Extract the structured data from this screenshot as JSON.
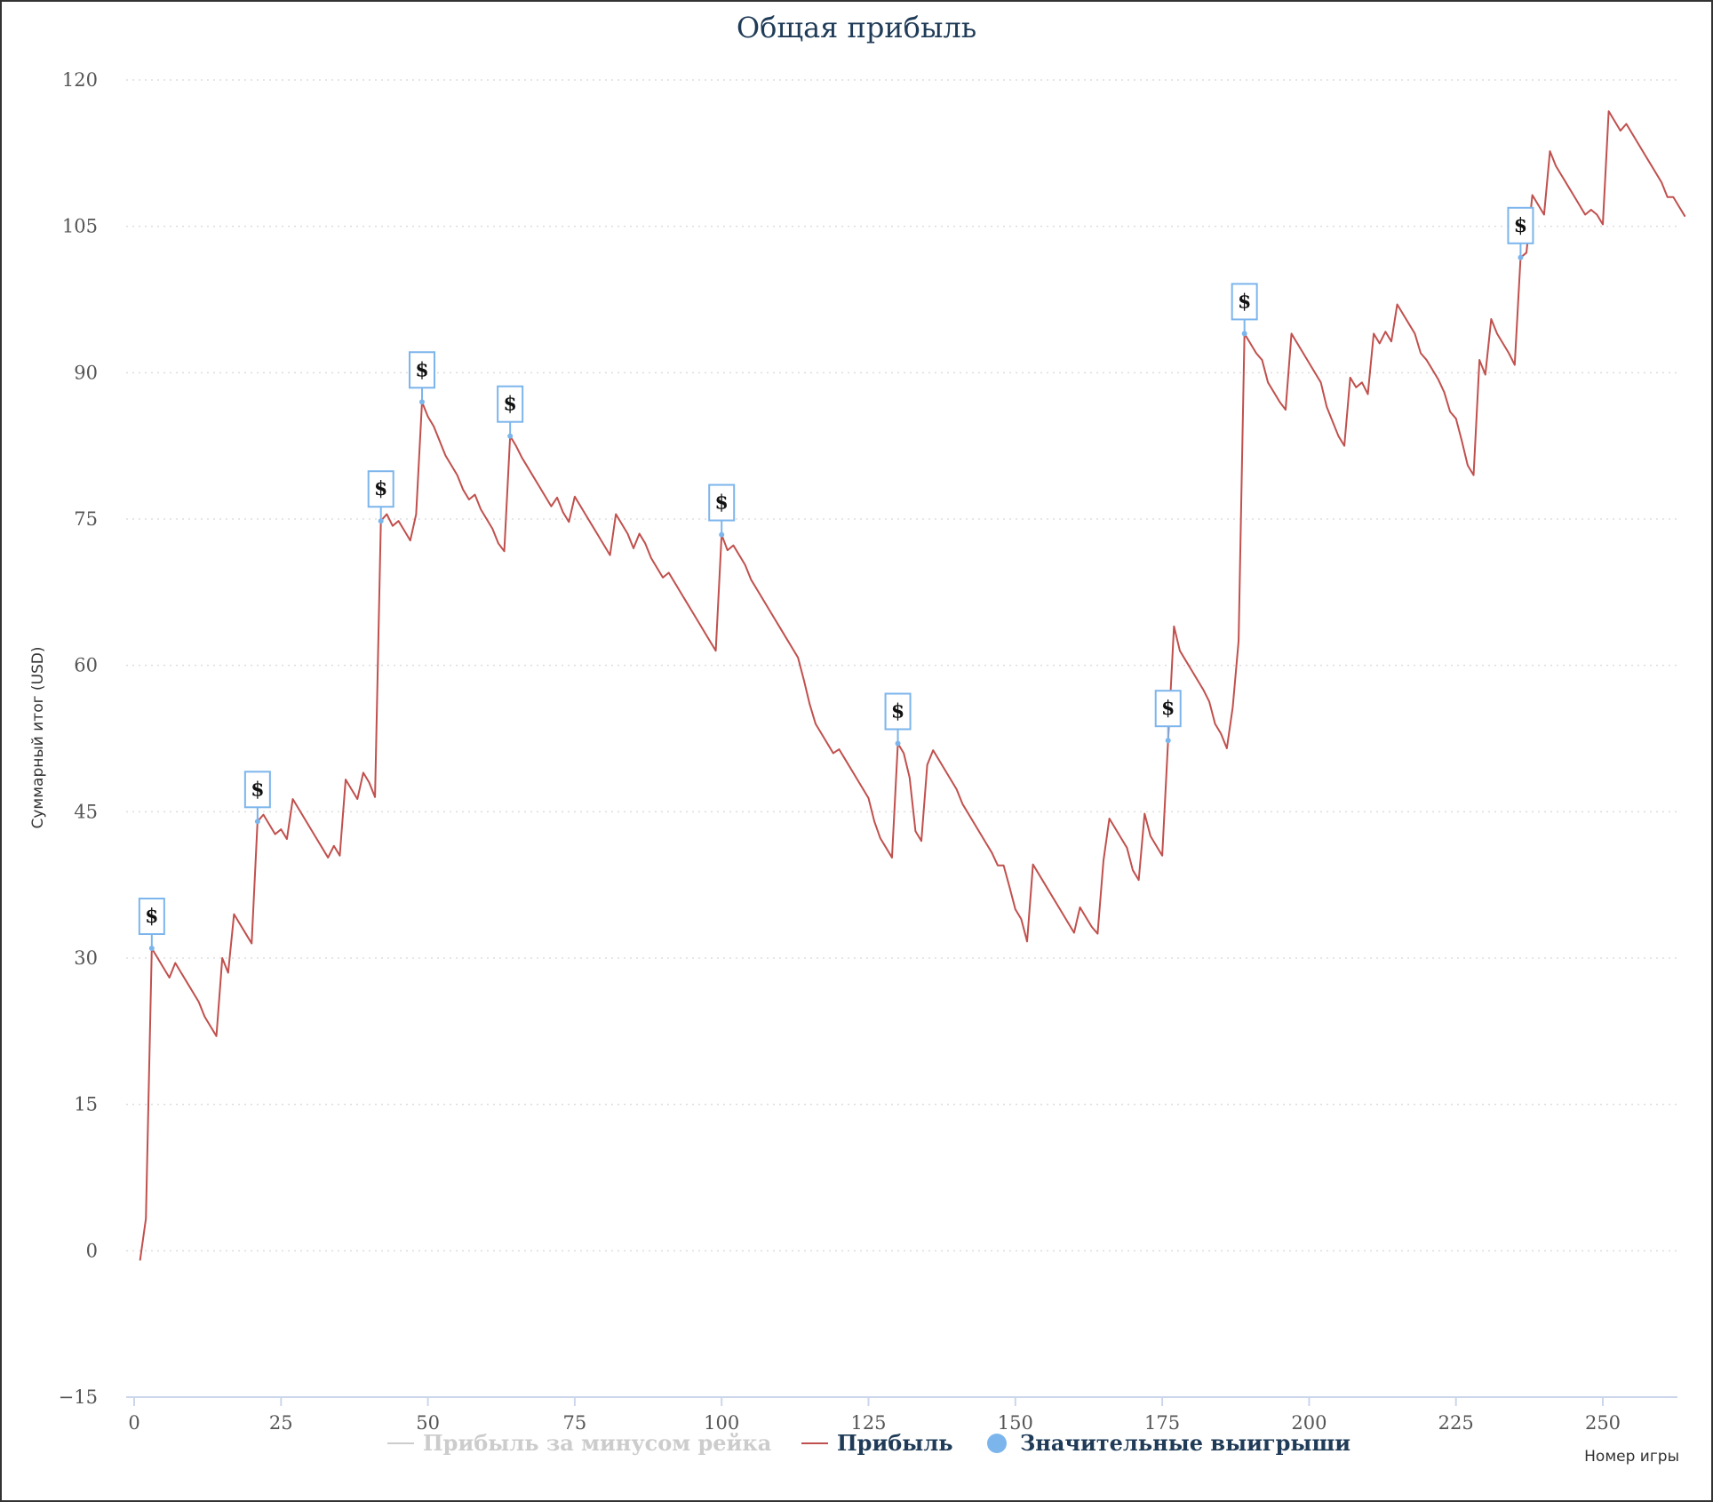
{
  "chart_data": {
    "type": "line",
    "title": "Общая прибыль",
    "xlabel": "Номер игры",
    "ylabel": "Суммарный итог (USD)",
    "xlim": [
      0,
      265
    ],
    "ylim": [
      -15,
      120
    ],
    "x_ticks": [
      0,
      25,
      50,
      75,
      100,
      125,
      150,
      175,
      200,
      225,
      250
    ],
    "y_ticks": [
      -15,
      0,
      15,
      30,
      45,
      60,
      75,
      90,
      105,
      120
    ],
    "grid": "horizontal-dotted",
    "legend": {
      "position": "bottom-center",
      "items": [
        {
          "label": "Прибыль за минусом рейка",
          "color": "#cccccc",
          "marker": "line",
          "hidden": true
        },
        {
          "label": "Прибыль",
          "color": "#c0504d",
          "marker": "line",
          "hidden": false
        },
        {
          "label": "Значительные выигрыши",
          "color": "#7cb5ec",
          "marker": "circle",
          "hidden": false
        }
      ]
    },
    "series": [
      {
        "name": "Прибыль",
        "color": "#c0504d",
        "points": [
          [
            1,
            -1
          ],
          [
            2,
            3.3
          ],
          [
            3,
            31
          ],
          [
            4,
            30
          ],
          [
            5,
            29
          ],
          [
            6,
            28
          ],
          [
            7,
            29.5
          ],
          [
            8,
            28.5
          ],
          [
            9,
            27.5
          ],
          [
            10,
            26.5
          ],
          [
            11,
            25.5
          ],
          [
            12,
            24
          ],
          [
            13,
            23
          ],
          [
            14,
            22
          ],
          [
            15,
            30
          ],
          [
            16,
            28.5
          ],
          [
            17,
            34.5
          ],
          [
            18,
            33.5
          ],
          [
            19,
            32.5
          ],
          [
            20,
            31.5
          ],
          [
            21,
            44
          ],
          [
            22,
            44.7
          ],
          [
            23,
            43.7
          ],
          [
            24,
            42.7
          ],
          [
            25,
            43.2
          ],
          [
            26,
            42.2
          ],
          [
            27,
            46.3
          ],
          [
            28,
            45.3
          ],
          [
            29,
            44.3
          ],
          [
            30,
            43.3
          ],
          [
            31,
            42.3
          ],
          [
            32,
            41.3
          ],
          [
            33,
            40.3
          ],
          [
            34,
            41.5
          ],
          [
            35,
            40.5
          ],
          [
            36,
            48.3
          ],
          [
            37,
            47.3
          ],
          [
            38,
            46.3
          ],
          [
            39,
            49
          ],
          [
            40,
            48
          ],
          [
            41,
            46.5
          ],
          [
            42,
            74.8
          ],
          [
            43,
            75.5
          ],
          [
            44,
            74.3
          ],
          [
            45,
            74.8
          ],
          [
            46,
            73.8
          ],
          [
            47,
            72.8
          ],
          [
            48,
            75.5
          ],
          [
            49,
            87
          ],
          [
            50,
            85.5
          ],
          [
            51,
            84.5
          ],
          [
            52,
            83
          ],
          [
            53,
            81.5
          ],
          [
            54,
            80.5
          ],
          [
            55,
            79.5
          ],
          [
            56,
            78
          ],
          [
            57,
            77
          ],
          [
            58,
            77.5
          ],
          [
            59,
            76
          ],
          [
            60,
            75
          ],
          [
            61,
            74
          ],
          [
            62,
            72.5
          ],
          [
            63,
            71.7
          ],
          [
            64,
            83.5
          ],
          [
            65,
            82.5
          ],
          [
            66,
            81.3
          ],
          [
            67,
            80.3
          ],
          [
            68,
            79.3
          ],
          [
            69,
            78.3
          ],
          [
            70,
            77.3
          ],
          [
            71,
            76.3
          ],
          [
            72,
            77.2
          ],
          [
            73,
            75.7
          ],
          [
            74,
            74.7
          ],
          [
            75,
            77.3
          ],
          [
            76,
            76.3
          ],
          [
            77,
            75.3
          ],
          [
            78,
            74.3
          ],
          [
            79,
            73.3
          ],
          [
            80,
            72.3
          ],
          [
            81,
            71.3
          ],
          [
            82,
            75.5
          ],
          [
            83,
            74.5
          ],
          [
            84,
            73.5
          ],
          [
            85,
            72
          ],
          [
            86,
            73.5
          ],
          [
            87,
            72.5
          ],
          [
            88,
            71
          ],
          [
            89,
            70
          ],
          [
            90,
            69
          ],
          [
            91,
            69.5
          ],
          [
            92,
            68.5
          ],
          [
            93,
            67.5
          ],
          [
            94,
            66.5
          ],
          [
            95,
            65.5
          ],
          [
            96,
            64.5
          ],
          [
            97,
            63.5
          ],
          [
            98,
            62.5
          ],
          [
            99,
            61.5
          ],
          [
            100,
            73.4
          ],
          [
            101,
            71.8
          ],
          [
            102,
            72.3
          ],
          [
            103,
            71.3
          ],
          [
            104,
            70.3
          ],
          [
            105,
            68.8
          ],
          [
            106,
            67.8
          ],
          [
            107,
            66.8
          ],
          [
            108,
            65.8
          ],
          [
            109,
            64.8
          ],
          [
            110,
            63.8
          ],
          [
            111,
            62.8
          ],
          [
            112,
            61.8
          ],
          [
            113,
            60.8
          ],
          [
            114,
            58.5
          ],
          [
            115,
            56
          ],
          [
            116,
            54
          ],
          [
            117,
            53
          ],
          [
            118,
            52
          ],
          [
            119,
            51
          ],
          [
            120,
            51.4
          ],
          [
            121,
            50.4
          ],
          [
            122,
            49.4
          ],
          [
            123,
            48.4
          ],
          [
            124,
            47.4
          ],
          [
            125,
            46.4
          ],
          [
            126,
            44
          ],
          [
            127,
            42.3
          ],
          [
            128,
            41.3
          ],
          [
            129,
            40.3
          ],
          [
            130,
            52
          ],
          [
            131,
            51
          ],
          [
            132,
            48.5
          ],
          [
            133,
            43
          ],
          [
            134,
            42
          ],
          [
            135,
            49.8
          ],
          [
            136,
            51.3
          ],
          [
            137,
            50.3
          ],
          [
            138,
            49.3
          ],
          [
            139,
            48.3
          ],
          [
            140,
            47.3
          ],
          [
            141,
            45.8
          ],
          [
            142,
            44.8
          ],
          [
            143,
            43.8
          ],
          [
            144,
            42.8
          ],
          [
            145,
            41.8
          ],
          [
            146,
            40.8
          ],
          [
            147,
            39.5
          ],
          [
            148,
            39.5
          ],
          [
            149,
            37.3
          ],
          [
            150,
            35
          ],
          [
            151,
            34
          ],
          [
            152,
            31.7
          ],
          [
            153,
            39.6
          ],
          [
            154,
            38.6
          ],
          [
            155,
            37.6
          ],
          [
            156,
            36.6
          ],
          [
            157,
            35.6
          ],
          [
            158,
            34.6
          ],
          [
            159,
            33.6
          ],
          [
            160,
            32.6
          ],
          [
            161,
            35.2
          ],
          [
            162,
            34.2
          ],
          [
            163,
            33.2
          ],
          [
            164,
            32.5
          ],
          [
            165,
            40
          ],
          [
            166,
            44.3
          ],
          [
            167,
            43.3
          ],
          [
            168,
            42.3
          ],
          [
            169,
            41.3
          ],
          [
            170,
            39
          ],
          [
            171,
            38
          ],
          [
            172,
            44.8
          ],
          [
            173,
            42.5
          ],
          [
            174,
            41.5
          ],
          [
            175,
            40.5
          ],
          [
            176,
            52.3
          ],
          [
            177,
            64
          ],
          [
            178,
            61.5
          ],
          [
            179,
            60.5
          ],
          [
            180,
            59.5
          ],
          [
            181,
            58.5
          ],
          [
            182,
            57.5
          ],
          [
            183,
            56.3
          ],
          [
            184,
            54
          ],
          [
            185,
            53
          ],
          [
            186,
            51.5
          ],
          [
            187,
            55.7
          ],
          [
            188,
            62.5
          ],
          [
            189,
            94
          ],
          [
            190,
            93
          ],
          [
            191,
            92
          ],
          [
            192,
            91.3
          ],
          [
            193,
            89
          ],
          [
            194,
            88
          ],
          [
            195,
            87
          ],
          [
            196,
            86.2
          ],
          [
            197,
            94
          ],
          [
            198,
            93
          ],
          [
            199,
            92
          ],
          [
            200,
            91
          ],
          [
            201,
            90
          ],
          [
            202,
            89
          ],
          [
            203,
            86.5
          ],
          [
            204,
            85
          ],
          [
            205,
            83.5
          ],
          [
            206,
            82.5
          ],
          [
            207,
            89.5
          ],
          [
            208,
            88.5
          ],
          [
            209,
            89
          ],
          [
            210,
            87.8
          ],
          [
            211,
            94
          ],
          [
            212,
            93
          ],
          [
            213,
            94.2
          ],
          [
            214,
            93.2
          ],
          [
            215,
            97
          ],
          [
            216,
            96
          ],
          [
            217,
            95
          ],
          [
            218,
            94
          ],
          [
            219,
            92
          ],
          [
            220,
            91.3
          ],
          [
            221,
            90.3
          ],
          [
            222,
            89.3
          ],
          [
            223,
            88
          ],
          [
            224,
            86
          ],
          [
            225,
            85.3
          ],
          [
            226,
            83
          ],
          [
            227,
            80.5
          ],
          [
            228,
            79.5
          ],
          [
            229,
            91.3
          ],
          [
            230,
            89.8
          ],
          [
            231,
            95.5
          ],
          [
            232,
            94
          ],
          [
            233,
            93
          ],
          [
            234,
            92
          ],
          [
            235,
            90.8
          ],
          [
            236,
            101.8
          ],
          [
            237,
            102.3
          ],
          [
            238,
            108.2
          ],
          [
            239,
            107.2
          ],
          [
            240,
            106.2
          ],
          [
            241,
            112.7
          ],
          [
            242,
            111.2
          ],
          [
            243,
            110.2
          ],
          [
            244,
            109.2
          ],
          [
            245,
            108.2
          ],
          [
            246,
            107.2
          ],
          [
            247,
            106.2
          ],
          [
            248,
            106.7
          ],
          [
            249,
            106.2
          ],
          [
            250,
            105.2
          ],
          [
            251,
            116.8
          ],
          [
            252,
            115.8
          ],
          [
            253,
            114.8
          ],
          [
            254,
            115.5
          ],
          [
            255,
            114.5
          ],
          [
            256,
            113.5
          ],
          [
            257,
            112.5
          ],
          [
            258,
            111.5
          ],
          [
            259,
            110.5
          ],
          [
            260,
            109.5
          ],
          [
            261,
            108
          ],
          [
            262,
            108
          ],
          [
            263,
            107
          ],
          [
            264,
            106
          ]
        ]
      },
      {
        "name": "Значительные выигрыши",
        "color": "#7cb5ec",
        "flag_label": "$",
        "points": [
          [
            3,
            31
          ],
          [
            21,
            44
          ],
          [
            42,
            74.8
          ],
          [
            49,
            87
          ],
          [
            64,
            83.5
          ],
          [
            100,
            73.4
          ],
          [
            130,
            52
          ],
          [
            176,
            52.3
          ],
          [
            189,
            94
          ],
          [
            236,
            101.8
          ]
        ]
      }
    ]
  }
}
